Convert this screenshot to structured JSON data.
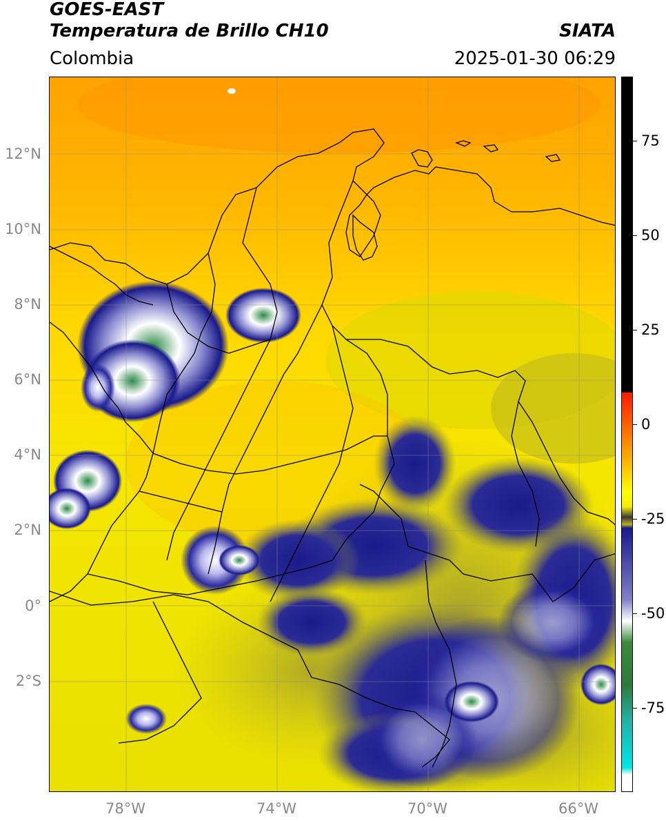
{
  "header": {
    "satellite": "GOES-EAST",
    "product": "Temperatura de Brillo CH10",
    "region": "Colombia",
    "agency": "SIATA",
    "datetime": "2025-01-30 06:29"
  },
  "axes": {
    "lat_ticks": [
      "12°N",
      "10°N",
      "8°N",
      "6°N",
      "4°N",
      "2°N",
      "0°",
      "2°S"
    ],
    "lon_ticks": [
      "78°W",
      "74°W",
      "70°W",
      "66°W"
    ]
  },
  "colorbar": {
    "ticks": [
      "75",
      "50",
      "25",
      "0",
      "-25",
      "-50",
      "-75"
    ],
    "colors": {
      "black": "#000000",
      "red": "#ff1a00",
      "orange": "#ff9900",
      "yellow": "#ffff00",
      "olive": "#b8b21a",
      "navy": "#1a1a8c",
      "white": "#ffffff",
      "green": "#3a8a3a",
      "teal": "#22b3a6",
      "cyan": "#00e5e5"
    }
  }
}
